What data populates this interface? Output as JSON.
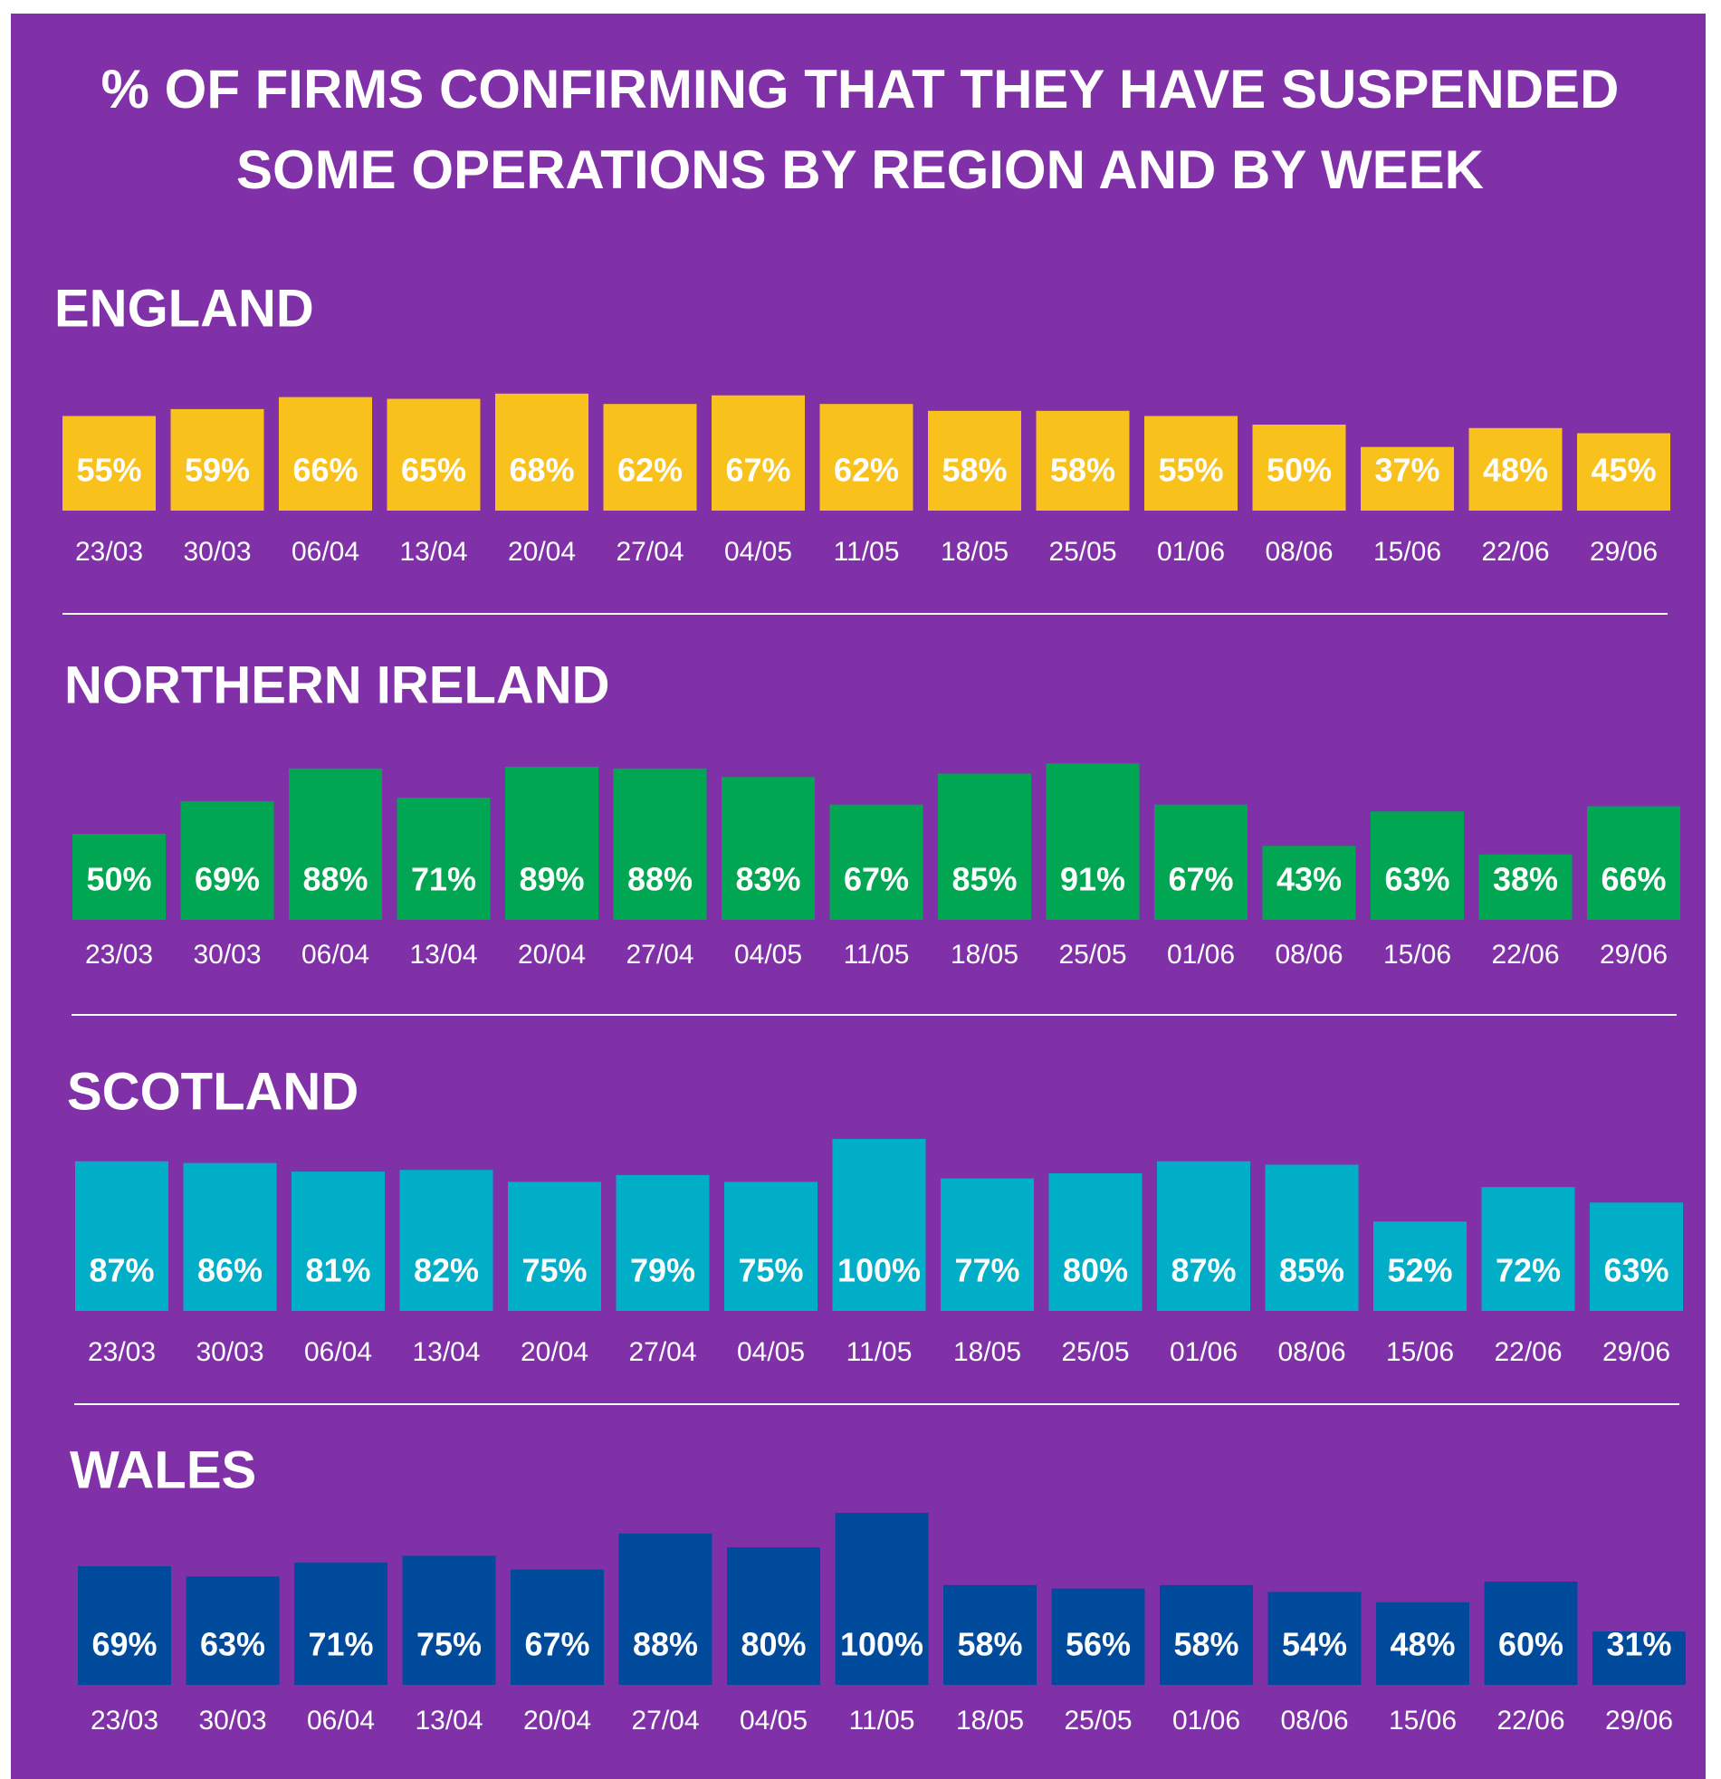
{
  "title": [
    "% OF FIRMS CONFIRMING THAT THEY HAVE SUSPENDED",
    "SOME OPERATIONS BY REGION AND BY WEEK"
  ],
  "chart_data": [
    {
      "type": "bar",
      "title": "ENGLAND",
      "color": "#f9c11b",
      "categories": [
        "23/03",
        "30/03",
        "06/04",
        "13/04",
        "20/04",
        "27/04",
        "04/05",
        "11/05",
        "18/05",
        "25/05",
        "01/06",
        "08/06",
        "15/06",
        "22/06",
        "29/06"
      ],
      "values": [
        55,
        59,
        66,
        65,
        68,
        62,
        67,
        62,
        58,
        58,
        55,
        50,
        37,
        48,
        45
      ],
      "value_labels": [
        "55%",
        "59%",
        "66%",
        "65%",
        "68%",
        "62%",
        "67%",
        "62%",
        "58%",
        "58%",
        "55%",
        "50%",
        "37%",
        "48%",
        "45%"
      ]
    },
    {
      "type": "bar",
      "title": "NORTHERN IRELAND",
      "color": "#00a651",
      "categories": [
        "23/03",
        "30/03",
        "06/04",
        "13/04",
        "20/04",
        "27/04",
        "04/05",
        "11/05",
        "18/05",
        "25/05",
        "01/06",
        "08/06",
        "15/06",
        "22/06",
        "29/06"
      ],
      "values": [
        50,
        69,
        88,
        71,
        89,
        88,
        83,
        67,
        85,
        91,
        67,
        43,
        63,
        38,
        66
      ],
      "value_labels": [
        "50%",
        "69%",
        "88%",
        "71%",
        "89%",
        "88%",
        "83%",
        "67%",
        "85%",
        "91%",
        "67%",
        "43%",
        "63%",
        "38%",
        "66%"
      ]
    },
    {
      "type": "bar",
      "title": "SCOTLAND",
      "color": "#00aec8",
      "categories": [
        "23/03",
        "30/03",
        "06/04",
        "13/04",
        "20/04",
        "27/04",
        "04/05",
        "11/05",
        "18/05",
        "25/05",
        "01/06",
        "08/06",
        "15/06",
        "22/06",
        "29/06"
      ],
      "values": [
        87,
        86,
        81,
        82,
        75,
        79,
        75,
        100,
        77,
        80,
        87,
        85,
        52,
        72,
        63
      ],
      "value_labels": [
        "87%",
        "86%",
        "81%",
        "82%",
        "75%",
        "79%",
        "75%",
        "100%",
        "77%",
        "80%",
        "87%",
        "85%",
        "52%",
        "72%",
        "63%"
      ]
    },
    {
      "type": "bar",
      "title": "WALES",
      "color": "#004a9b",
      "categories": [
        "23/03",
        "30/03",
        "06/04",
        "13/04",
        "20/04",
        "27/04",
        "04/05",
        "11/05",
        "18/05",
        "25/05",
        "01/06",
        "08/06",
        "15/06",
        "22/06",
        "29/06"
      ],
      "values": [
        69,
        63,
        71,
        75,
        67,
        88,
        80,
        100,
        58,
        56,
        58,
        54,
        48,
        60,
        31
      ],
      "value_labels": [
        "69%",
        "63%",
        "71%",
        "75%",
        "67%",
        "88%",
        "80%",
        "100%",
        "58%",
        "56%",
        "58%",
        "54%",
        "48%",
        "60%",
        "31%"
      ]
    }
  ]
}
